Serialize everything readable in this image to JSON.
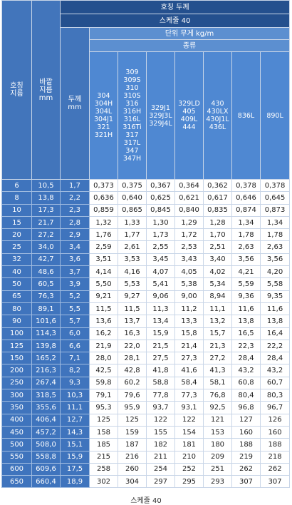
{
  "header": {
    "nominal": "호칭\n지름",
    "outer": "바깥\n지름\nmm",
    "group": "호칭 두께",
    "schedule": "스케줄 40",
    "thickness": "두께\nmm",
    "unit_weight": "단위 무게 kg/m",
    "kind": "종류",
    "grades": [
      "304\n304H\n304L\n304J1\n321\n321H",
      "309\n309S\n310\n310S\n316\n316H\n316L\n316Ti\n317\n317L\n347\n347H",
      "329J1\n329J3L\n329J4L",
      "329LD\n405\n409L\n444",
      "430\n430LX\n430J1L\n436L",
      "836L",
      "890L"
    ]
  },
  "rows": [
    [
      "6",
      "10,5",
      "1,7",
      "0,373",
      "0,375",
      "0,367",
      "0,364",
      "0,362",
      "0,378",
      "0,378"
    ],
    [
      "8",
      "13,8",
      "2,2",
      "0,636",
      "0,640",
      "0,625",
      "0,621",
      "0,617",
      "0,646",
      "0,645"
    ],
    [
      "10",
      "17,3",
      "2,3",
      "0,859",
      "0,865",
      "0,845",
      "0,840",
      "0,835",
      "0,874",
      "0,873"
    ],
    [
      "15",
      "21,7",
      "2,8",
      "1,32",
      "1,33",
      "1,30",
      "1,29",
      "1,28",
      "1,34",
      "1,34"
    ],
    [
      "20",
      "27,2",
      "2,9",
      "1,76",
      "1,77",
      "1,73",
      "1,72",
      "1,70",
      "1,78",
      "1,78"
    ],
    [
      "25",
      "34,0",
      "3,4",
      "2,59",
      "2,61",
      "2,55",
      "2,53",
      "2,51",
      "2,63",
      "2,63"
    ],
    [
      "32",
      "42,7",
      "3,6",
      "3,51",
      "3,53",
      "3,45",
      "3,43",
      "3,40",
      "3,56",
      "3,56"
    ],
    [
      "40",
      "48,6",
      "3,7",
      "4,14",
      "4,16",
      "4,07",
      "4,05",
      "4,02",
      "4,21",
      "4,20"
    ],
    [
      "50",
      "60,5",
      "3,9",
      "5,50",
      "5,53",
      "5,41",
      "5,38",
      "5,34",
      "5,59",
      "5,58"
    ],
    [
      "65",
      "76,3",
      "5,2",
      "9,21",
      "9,27",
      "9,06",
      "9,00",
      "8,94",
      "9,36",
      "9,35"
    ],
    [
      "80",
      "89,1",
      "5,5",
      "11,5",
      "11,5",
      "11,3",
      "11,2",
      "11,1",
      "11,6",
      "11,6"
    ],
    [
      "90",
      "101,6",
      "5,7",
      "13,6",
      "13,7",
      "13,4",
      "13,3",
      "13,2",
      "13,8",
      "13,8"
    ],
    [
      "100",
      "114,3",
      "6,0",
      "16,2",
      "16,3",
      "15,9",
      "15,8",
      "15,7",
      "16,5",
      "16,4"
    ],
    [
      "125",
      "139,8",
      "6,6",
      "21,9",
      "22,0",
      "21,5",
      "21,4",
      "21,3",
      "22,3",
      "22,2"
    ],
    [
      "150",
      "165,2",
      "7,1",
      "28,0",
      "28,1",
      "27,5",
      "27,3",
      "27,2",
      "28,4",
      "28,4"
    ],
    [
      "200",
      "216,3",
      "8,2",
      "42,5",
      "42,8",
      "41,8",
      "41,6",
      "41,3",
      "43,2",
      "43,2"
    ],
    [
      "250",
      "267,4",
      "9,3",
      "59,8",
      "60,2",
      "58,8",
      "58,4",
      "58,1",
      "60,8",
      "60,7"
    ],
    [
      "300",
      "318,5",
      "10,3",
      "79,1",
      "79,6",
      "77,8",
      "77,3",
      "76,8",
      "80,4",
      "80,3"
    ],
    [
      "350",
      "355,6",
      "11,1",
      "95,3",
      "95,9",
      "93,7",
      "93,1",
      "92,5",
      "96,8",
      "96,7"
    ],
    [
      "400",
      "406,4",
      "12,7",
      "125",
      "125",
      "122",
      "122",
      "121",
      "127",
      "126"
    ],
    [
      "450",
      "457,2",
      "14,3",
      "158",
      "159",
      "155",
      "154",
      "153",
      "160",
      "160"
    ],
    [
      "500",
      "508,0",
      "15,1",
      "185",
      "187",
      "182",
      "181",
      "180",
      "188",
      "188"
    ],
    [
      "550",
      "558,8",
      "15,9",
      "215",
      "216",
      "211",
      "210",
      "209",
      "219",
      "218"
    ],
    [
      "600",
      "609,6",
      "17,5",
      "258",
      "260",
      "254",
      "252",
      "251",
      "262",
      "262"
    ],
    [
      "650",
      "660,4",
      "18,9",
      "302",
      "304",
      "297",
      "295",
      "293",
      "307",
      "307"
    ]
  ],
  "caption": "스케줄 40"
}
